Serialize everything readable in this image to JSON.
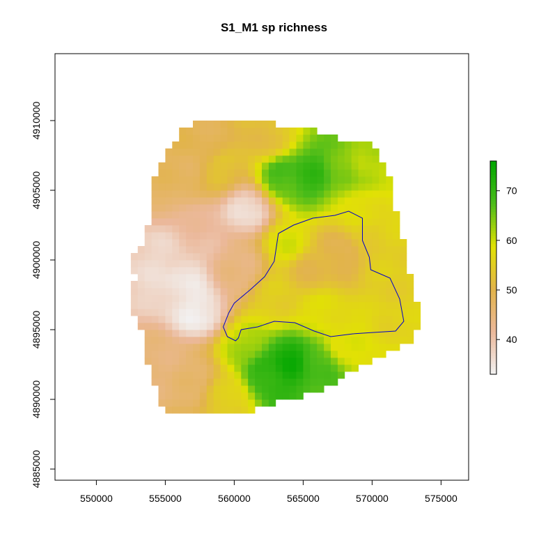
{
  "chart_data": {
    "type": "heatmap",
    "title": "S1_M1 sp richness",
    "xlabel": "",
    "ylabel": "",
    "xlim": [
      547000,
      577000
    ],
    "ylim": [
      4884200,
      4914800
    ],
    "x_ticks": [
      550000,
      555000,
      560000,
      565000,
      570000,
      575000
    ],
    "x_tick_labels": [
      "550000",
      "555000",
      "560000",
      "565000",
      "570000",
      "575000"
    ],
    "y_ticks": [
      4885000,
      4890000,
      4895000,
      4900000,
      4905000,
      4910000
    ],
    "y_tick_labels": [
      "4885000",
      "4890000",
      "4895000",
      "4900000",
      "4905000",
      "4910000"
    ],
    "grid": false,
    "colorbar": {
      "min": 33,
      "max": 76,
      "ticks": [
        40,
        50,
        60,
        70
      ],
      "tick_labels": [
        "40",
        "50",
        "60",
        "70"
      ],
      "colors": [
        "#f2f2f2",
        "#ebb89a",
        "#e2b44b",
        "#e1e104",
        "#4cbc1a",
        "#00a600"
      ]
    },
    "region": [
      [
        560600,
        4889100
      ],
      [
        555000,
        4889100
      ],
      [
        554500,
        4890000
      ],
      [
        554100,
        4891500
      ],
      [
        553500,
        4892800
      ],
      [
        553500,
        4894500
      ],
      [
        552800,
        4896000
      ],
      [
        552500,
        4897500
      ],
      [
        552800,
        4898500
      ],
      [
        552600,
        4900000
      ],
      [
        553400,
        4901500
      ],
      [
        554100,
        4903000
      ],
      [
        553800,
        4905000
      ],
      [
        554400,
        4906500
      ],
      [
        555300,
        4908000
      ],
      [
        556200,
        4909300
      ],
      [
        557500,
        4910000
      ],
      [
        561200,
        4910000
      ],
      [
        565200,
        4909500
      ],
      [
        567800,
        4908700
      ],
      [
        570000,
        4908400
      ],
      [
        570700,
        4907300
      ],
      [
        571400,
        4905500
      ],
      [
        571800,
        4903200
      ],
      [
        572300,
        4901200
      ],
      [
        572700,
        4899500
      ],
      [
        573100,
        4897500
      ],
      [
        573500,
        4895600
      ],
      [
        573200,
        4894600
      ],
      [
        572200,
        4893800
      ],
      [
        570800,
        4893000
      ],
      [
        569200,
        4892300
      ],
      [
        567800,
        4891500
      ],
      [
        566500,
        4890800
      ],
      [
        565000,
        4890300
      ],
      [
        563200,
        4889800
      ],
      [
        561600,
        4889200
      ]
    ],
    "value_anchors": [
      [
        557500,
        4896300,
        34
      ],
      [
        556200,
        4898600,
        35
      ],
      [
        554600,
        4899800,
        37
      ],
      [
        561000,
        4903600,
        36
      ],
      [
        557600,
        4902200,
        41
      ],
      [
        554600,
        4892500,
        45
      ],
      [
        556800,
        4891500,
        46
      ],
      [
        560200,
        4899400,
        44
      ],
      [
        558500,
        4908300,
        49
      ],
      [
        556200,
        4905800,
        48
      ],
      [
        559200,
        4906700,
        53
      ],
      [
        562400,
        4908600,
        52
      ],
      [
        567800,
        4900500,
        49
      ],
      [
        565500,
        4899300,
        51
      ],
      [
        569800,
        4901600,
        55
      ],
      [
        570800,
        4898200,
        55
      ],
      [
        572600,
        4896300,
        56
      ],
      [
        563500,
        4906000,
        68
      ],
      [
        565600,
        4906200,
        70
      ],
      [
        567600,
        4906500,
        65
      ],
      [
        569900,
        4906800,
        61
      ],
      [
        564000,
        4892800,
        74
      ],
      [
        562300,
        4891900,
        71
      ],
      [
        566100,
        4892600,
        68
      ],
      [
        560700,
        4893800,
        62
      ],
      [
        568000,
        4894000,
        58
      ],
      [
        563800,
        4901300,
        59
      ],
      [
        562800,
        4897000,
        55
      ],
      [
        566000,
        4896100,
        58
      ],
      [
        569600,
        4903800,
        58
      ],
      [
        559500,
        4890300,
        55
      ]
    ],
    "watershed": [
      [
        563200,
        4901900
      ],
      [
        564300,
        4902500
      ],
      [
        565700,
        4903000
      ],
      [
        567300,
        4903200
      ],
      [
        568300,
        4903500
      ],
      [
        569300,
        4903000
      ],
      [
        569300,
        4901400
      ],
      [
        569800,
        4900200
      ],
      [
        569900,
        4899300
      ],
      [
        571300,
        4898700
      ],
      [
        572000,
        4897200
      ],
      [
        572300,
        4895600
      ],
      [
        571700,
        4894900
      ],
      [
        570100,
        4894800
      ],
      [
        568600,
        4894700
      ],
      [
        567000,
        4894500
      ],
      [
        565800,
        4894900
      ],
      [
        564400,
        4895500
      ],
      [
        562900,
        4895600
      ],
      [
        561700,
        4895200
      ],
      [
        560500,
        4895000
      ],
      [
        560300,
        4894400
      ],
      [
        560100,
        4894200
      ],
      [
        559500,
        4894500
      ],
      [
        559200,
        4895200
      ],
      [
        559600,
        4896200
      ],
      [
        560000,
        4896900
      ],
      [
        561200,
        4897900
      ],
      [
        562200,
        4898800
      ],
      [
        562900,
        4899900
      ],
      [
        563200,
        4901900
      ]
    ],
    "watershed_color": "#0000cc",
    "panel_color": "#000000"
  }
}
